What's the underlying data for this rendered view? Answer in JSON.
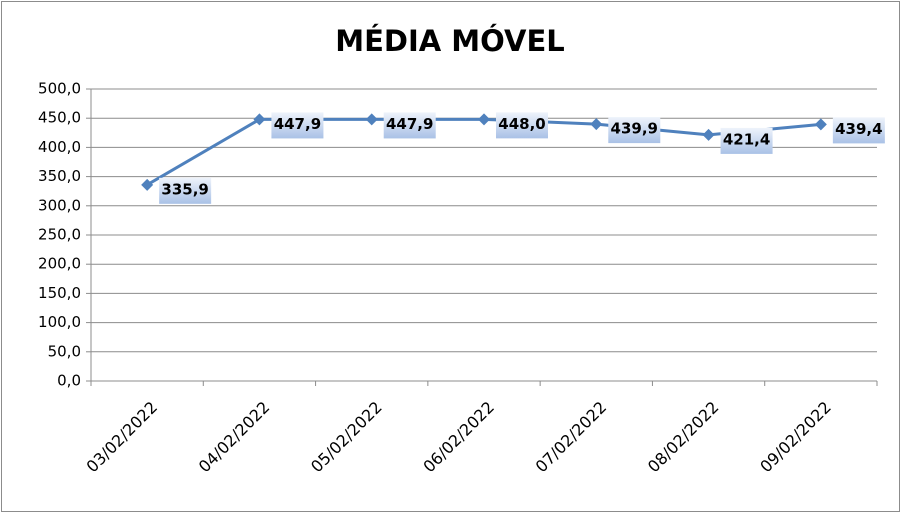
{
  "chart_data": {
    "type": "line",
    "title": "MÉDIA MÓVEL",
    "categories": [
      "03/02/2022",
      "04/02/2022",
      "05/02/2022",
      "06/02/2022",
      "07/02/2022",
      "08/02/2022",
      "09/02/2022"
    ],
    "values": [
      335.9,
      447.9,
      447.9,
      448.0,
      439.9,
      421.4,
      439.4
    ],
    "value_labels": [
      "335,9",
      "447,9",
      "447,9",
      "448,0",
      "439,9",
      "421,4",
      "439,4"
    ],
    "color": "#4f81bd",
    "ylim": [
      0,
      500
    ],
    "yticks": [
      {
        "value": 0,
        "label": "0,0"
      },
      {
        "value": 50,
        "label": "50,0"
      },
      {
        "value": 100,
        "label": "100,0"
      },
      {
        "value": 150,
        "label": "150,0"
      },
      {
        "value": 200,
        "label": "200,0"
      },
      {
        "value": 250,
        "label": "250,0"
      },
      {
        "value": 300,
        "label": "300,0"
      },
      {
        "value": 350,
        "label": "350,0"
      },
      {
        "value": 400,
        "label": "400,0"
      },
      {
        "value": 450,
        "label": "450,0"
      },
      {
        "value": 500,
        "label": "500,0"
      }
    ],
    "grid": true
  }
}
